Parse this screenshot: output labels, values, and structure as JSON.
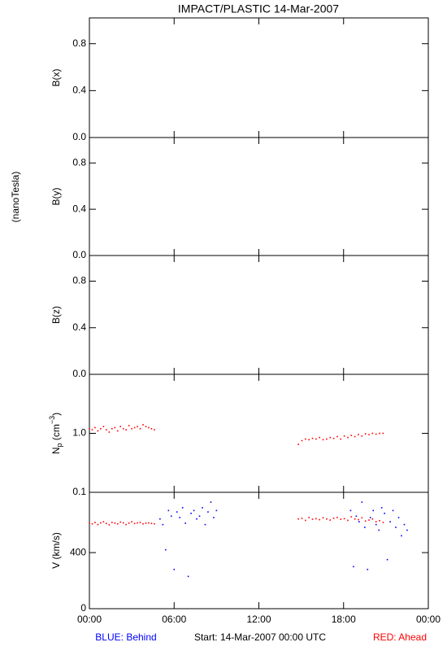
{
  "title": "IMPACT/PLASTIC   14-Mar-2007",
  "units_label": "(nanoTesla)",
  "footer": {
    "behind": "BLUE: Behind",
    "start": "Start: 14-Mar-2007 00:00 UTC",
    "ahead": "RED: Ahead",
    "behind_color": "#0000ff",
    "ahead_color": "#ff0000"
  },
  "chart_data": [
    {
      "type": "scatter",
      "ylabel": "B(x)",
      "ylim": [
        0,
        1.02
      ],
      "yticks": [
        {
          "value": 0,
          "label": "0.0"
        },
        0.4,
        0.8
      ],
      "series": []
    },
    {
      "type": "scatter",
      "ylabel": "B(y)",
      "ylim": [
        0,
        1.02
      ],
      "yticks": [
        {
          "value": 0,
          "label": "0.0"
        },
        0.4,
        0.8
      ],
      "series": []
    },
    {
      "type": "scatter",
      "ylabel": "B(z)",
      "ylim": [
        0,
        1.02
      ],
      "yticks": [
        {
          "value": 0,
          "label": "0.0"
        },
        0.4,
        0.8
      ],
      "series": []
    },
    {
      "type": "scatter",
      "ylabel": {
        "base": "N",
        "sub": "p",
        "unit": " (cm",
        "sup": "−3",
        "end": ")"
      },
      "log_y": true,
      "ylim": [
        0.1,
        10
      ],
      "yticks": [
        0.1,
        {
          "value": 1,
          "label": "1.0"
        }
      ],
      "series": [
        {
          "color": "#ff0000",
          "x": [
            0,
            0.2,
            0.4,
            0.6,
            0.8,
            1,
            1.2,
            1.4,
            1.6,
            1.8,
            2,
            2.2,
            2.4,
            2.6,
            2.8,
            3,
            3.2,
            3.4,
            3.6,
            3.8,
            4,
            4.2,
            4.4,
            4.6,
            14.8,
            15.05,
            15.3,
            15.55,
            15.8,
            16.05,
            16.3,
            16.55,
            16.8,
            17.05,
            17.3,
            17.55,
            17.8,
            18.05,
            18.3,
            18.55,
            18.8,
            19.05,
            19.3,
            19.55,
            19.8,
            20.05,
            20.3,
            20.55,
            20.8
          ],
          "values": [
            1.2,
            1.15,
            1.25,
            1.1,
            1.2,
            1.3,
            1.15,
            1.05,
            1.2,
            1.25,
            1.1,
            1.3,
            1.2,
            1.15,
            1.35,
            1.2,
            1.25,
            1.3,
            1.2,
            1.4,
            1.3,
            1.25,
            1.2,
            1.15,
            0.65,
            0.75,
            0.8,
            0.78,
            0.82,
            0.8,
            0.85,
            0.78,
            0.8,
            0.85,
            0.82,
            0.88,
            0.8,
            0.9,
            0.85,
            0.92,
            0.88,
            0.95,
            0.9,
            0.98,
            0.95,
            1.0,
            0.97,
            1.0,
            1.0
          ]
        }
      ]
    },
    {
      "type": "scatter",
      "ylabel": "V (km/s)",
      "ylim": [
        0,
        830
      ],
      "yticks": [
        0,
        400
      ],
      "xlim": [
        0,
        24
      ],
      "xticks": [
        {
          "value": 0,
          "label": "00:00"
        },
        {
          "value": 6,
          "label": "06:00"
        },
        {
          "value": 12,
          "label": "12:00"
        },
        {
          "value": 18,
          "label": "18:00"
        },
        {
          "value": 24,
          "label": "00:00"
        }
      ],
      "series": [
        {
          "color": "#ff0000",
          "x": [
            0,
            0.2,
            0.4,
            0.6,
            0.8,
            1,
            1.2,
            1.4,
            1.6,
            1.8,
            2,
            2.2,
            2.4,
            2.6,
            2.8,
            3,
            3.2,
            3.4,
            3.6,
            3.8,
            4,
            4.2,
            4.4,
            4.6,
            14.8,
            15.05,
            15.3,
            15.55,
            15.8,
            16.05,
            16.3,
            16.55,
            16.8,
            17.05,
            17.3,
            17.55,
            17.8,
            18.05,
            18.3,
            18.55,
            18.8,
            19.05,
            19.3,
            19.55,
            19.8,
            20.05,
            20.3,
            20.55,
            20.8
          ],
          "values": [
            610,
            605,
            615,
            600,
            612,
            620,
            608,
            598,
            615,
            610,
            605,
            618,
            612,
            600,
            610,
            620,
            608,
            612,
            615,
            605,
            610,
            612,
            608,
            605,
            640,
            645,
            630,
            650,
            638,
            642,
            635,
            648,
            640,
            632,
            645,
            650,
            638,
            642,
            630,
            655,
            640,
            635,
            648,
            625,
            632,
            640,
            620,
            628,
            615
          ]
        },
        {
          "color": "#0000ff",
          "x": [
            5,
            5.2,
            5.4,
            5.6,
            5.8,
            6,
            6.2,
            6.4,
            6.6,
            6.8,
            7,
            7.2,
            7.4,
            7.6,
            7.8,
            8,
            8.2,
            8.4,
            8.6,
            8.8,
            9,
            18.5,
            18.7,
            18.9,
            19.1,
            19.3,
            19.5,
            19.7,
            19.9,
            20.1,
            20.3,
            20.5,
            20.7,
            20.9,
            21.1,
            21.3,
            21.5,
            21.7,
            21.9,
            22.1,
            22.3,
            22.5
          ],
          "values": [
            640,
            600,
            420,
            700,
            660,
            280,
            690,
            650,
            720,
            610,
            230,
            680,
            700,
            640,
            660,
            720,
            600,
            690,
            760,
            650,
            700,
            700,
            300,
            660,
            620,
            760,
            580,
            280,
            650,
            700,
            600,
            560,
            720,
            680,
            350,
            620,
            700,
            580,
            650,
            520,
            600,
            560
          ]
        }
      ]
    }
  ]
}
